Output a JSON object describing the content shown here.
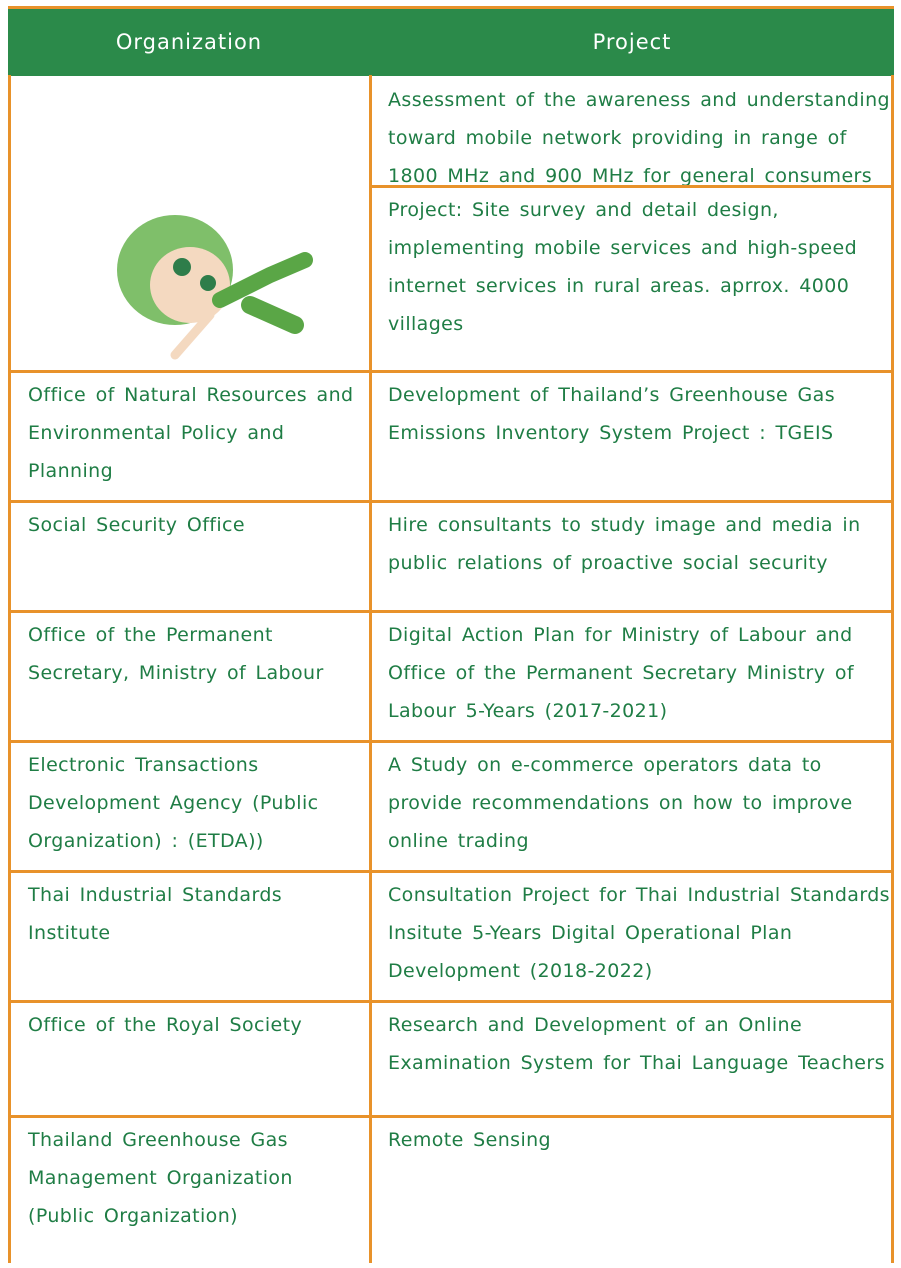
{
  "table": {
    "headers": [
      "Organization",
      "Project"
    ],
    "rows": [
      {
        "projects": [
          "Assessment of the awareness and understanding toward mobile network providing in range of 1800 MHz and 900 MHz for general consumers",
          "Project: Site survey and detail design, implementing mobile services and high-speed internet services in rural areas. aprrox. 4000 villages"
        ]
      },
      {
        "organization": "Office of Natural Resources and Environmental Policy and Planning",
        "projects": [
          "Development of Thailand’s Greenhouse Gas Emissions Inventory System Project : TGEIS"
        ]
      },
      {
        "organization": "Social Security Office",
        "projects": [
          "Hire consultants to study image and media in public relations of proactive social security"
        ]
      },
      {
        "organization": "Office of the Permanent Secretary, Ministry of Labour",
        "projects": [
          "Digital Action Plan for Ministry of Labour and Office of the Permanent Secretary Ministry of Labour 5-Years (2017-2021)"
        ]
      },
      {
        "organization": "Electronic Transactions Development Agency (Public Organization) : (ETDA))",
        "projects": [
          "A Study on e-commerce operators data to provide recommendations on how to improve online trading"
        ]
      },
      {
        "organization": "Thai Industrial Standards Institute",
        "projects": [
          "Consultation Project for Thai Industrial Standards Insitute 5-Years Digital Operational Plan Development (2018-2022)"
        ]
      },
      {
        "organization": "Office of the Royal Society",
        "projects": [
          "Research and Development of an Online Examination System for Thai Language Teachers"
        ]
      },
      {
        "organization": "Thailand Greenhouse Gas Management Organization (Public Organization)",
        "projects": [
          "Remote Sensing"
        ]
      }
    ]
  }
}
